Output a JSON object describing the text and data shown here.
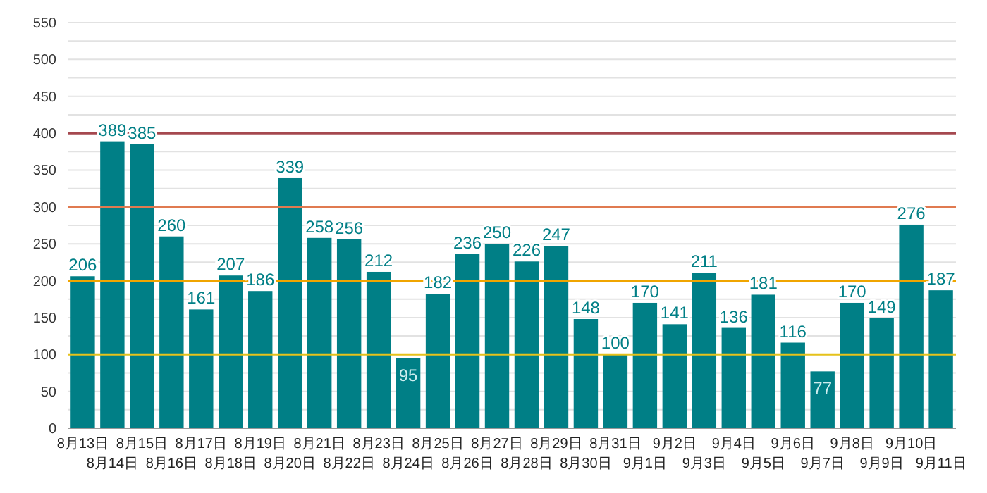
{
  "chart_data": {
    "type": "bar",
    "categories": [
      "8月13日",
      "8月14日",
      "8月15日",
      "8月16日",
      "8月17日",
      "8月18日",
      "8月19日",
      "8月20日",
      "8月21日",
      "8月22日",
      "8月23日",
      "8月24日",
      "8月25日",
      "8月26日",
      "8月27日",
      "8月28日",
      "8月29日",
      "8月30日",
      "8月31日",
      "9月1日",
      "9月2日",
      "9月3日",
      "9月4日",
      "9月5日",
      "9月6日",
      "9月7日",
      "9月8日",
      "9月9日",
      "9月10日",
      "9月11日"
    ],
    "values": [
      206,
      389,
      385,
      260,
      161,
      207,
      186,
      339,
      258,
      256,
      212,
      95,
      182,
      236,
      250,
      226,
      247,
      148,
      100,
      170,
      141,
      211,
      136,
      181,
      116,
      77,
      170,
      149,
      276,
      187
    ],
    "color": "#007f86",
    "ylim": [
      0,
      550
    ],
    "yticks": [
      0,
      {
        "value": 25,
        "label": null
      },
      50,
      {
        "value": 75,
        "label": null
      },
      100,
      {
        "value": 125,
        "label": null
      },
      150,
      {
        "value": 175,
        "label": null
      },
      200,
      {
        "value": 225,
        "label": null
      },
      250,
      {
        "value": 275,
        "label": null
      },
      300,
      {
        "value": 325,
        "label": null
      },
      350,
      {
        "value": 375,
        "label": null
      },
      400,
      {
        "value": 425,
        "label": null
      },
      450,
      {
        "value": 475,
        "label": null
      },
      500,
      {
        "value": 525,
        "label": null
      },
      550
    ],
    "grid": "y",
    "data_labels": true,
    "ref_lines": [
      {
        "axis": "y",
        "value": 100,
        "color": "#e6c21a"
      },
      {
        "axis": "y",
        "value": 200,
        "color": "#f0a500"
      },
      {
        "axis": "y",
        "value": 300,
        "color": "#e07a50"
      },
      {
        "axis": "y",
        "value": 400,
        "color": "#a5484f"
      }
    ]
  }
}
